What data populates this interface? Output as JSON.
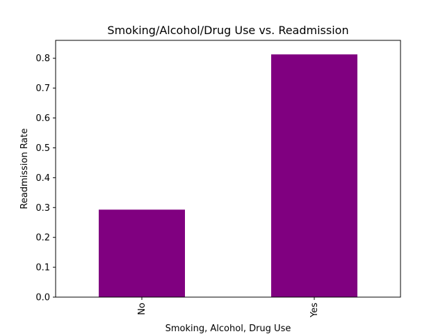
{
  "chart_data": {
    "type": "bar",
    "title": "Smoking/Alcohol/Drug Use vs. Readmission",
    "xlabel": "Smoking, Alcohol, Drug Use",
    "ylabel": "Readmission Rate",
    "categories": [
      "No",
      "Yes"
    ],
    "values": [
      0.293,
      0.813
    ],
    "ylim": [
      0,
      0.86
    ],
    "yticks": [
      "0.0",
      "0.1",
      "0.2",
      "0.3",
      "0.4",
      "0.5",
      "0.6",
      "0.7",
      "0.8"
    ],
    "grid": false,
    "bar_color": "#800080",
    "xtick_rotation": "vertical"
  }
}
